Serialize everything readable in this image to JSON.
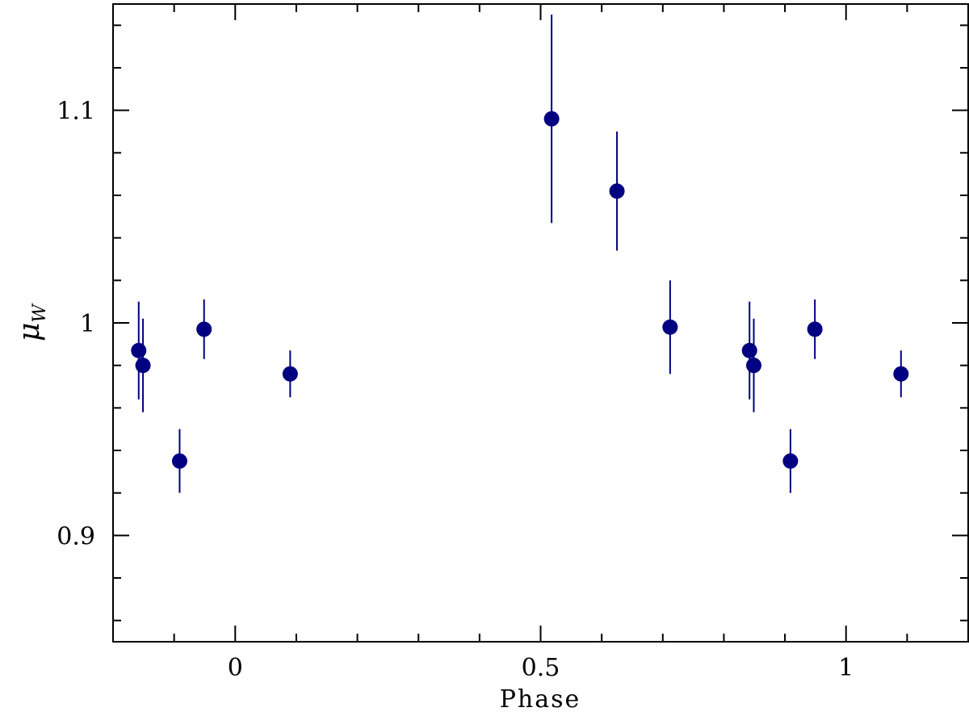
{
  "chart_data": {
    "type": "scatter",
    "xlabel": "Phase",
    "ylabel": "μ_W",
    "ylabel_main": "μ",
    "ylabel_sub": "W",
    "xlim": [
      -0.2,
      1.2
    ],
    "ylim": [
      0.85,
      1.15
    ],
    "x_major_ticks": [
      0,
      0.5,
      1
    ],
    "x_major_tick_labels": [
      "0",
      "0.5",
      "1"
    ],
    "x_minor_ticks": [
      -0.1,
      0.1,
      0.2,
      0.3,
      0.4,
      0.6,
      0.7,
      0.8,
      0.9,
      1.1
    ],
    "y_major_ticks": [
      0.9,
      1.0,
      1.1
    ],
    "y_major_tick_labels": [
      "0.9",
      "1",
      "1.1"
    ],
    "y_minor_ticks": [
      0.86,
      0.88,
      0.92,
      0.94,
      0.96,
      0.98,
      1.02,
      1.04,
      1.06,
      1.08,
      1.12,
      1.14
    ],
    "grid": false,
    "marker_color": "#000080",
    "series": [
      {
        "points": [
          {
            "x": -0.158,
            "y": 0.987,
            "err": 0.023
          },
          {
            "x": -0.151,
            "y": 0.98,
            "err": 0.022
          },
          {
            "x": -0.091,
            "y": 0.935,
            "err": 0.015
          },
          {
            "x": -0.051,
            "y": 0.997,
            "err": 0.014
          },
          {
            "x": 0.09,
            "y": 0.976,
            "err": 0.011
          },
          {
            "x": 0.518,
            "y": 1.096,
            "err": 0.049
          },
          {
            "x": 0.625,
            "y": 1.062,
            "err": 0.028
          },
          {
            "x": 0.712,
            "y": 0.998,
            "err": 0.022
          },
          {
            "x": 0.842,
            "y": 0.987,
            "err": 0.023
          },
          {
            "x": 0.849,
            "y": 0.98,
            "err": 0.022
          },
          {
            "x": 0.909,
            "y": 0.935,
            "err": 0.015
          },
          {
            "x": 0.949,
            "y": 0.997,
            "err": 0.014
          },
          {
            "x": 1.09,
            "y": 0.976,
            "err": 0.011
          }
        ]
      }
    ]
  }
}
